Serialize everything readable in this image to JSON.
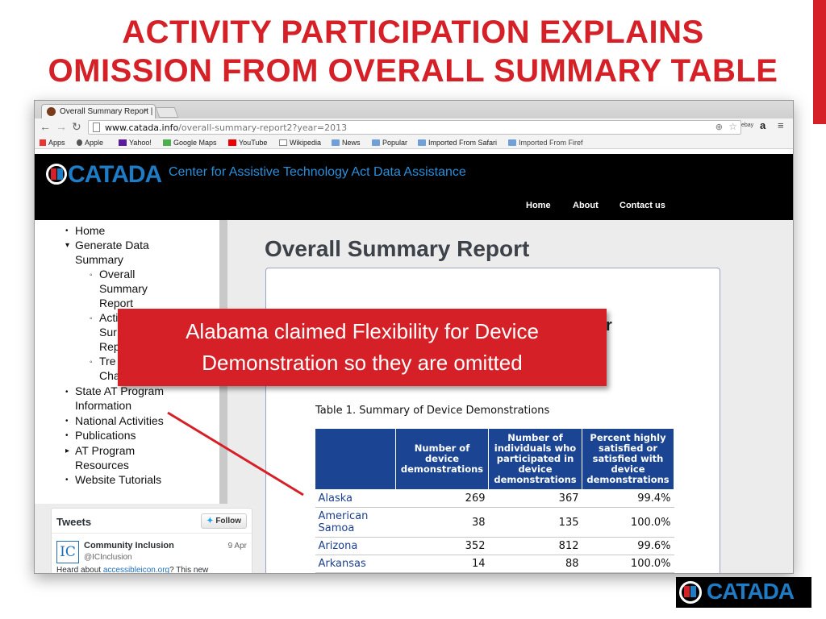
{
  "slide": {
    "title_line1": "ACTIVITY PARTICIPATION EXPLAINS",
    "title_line2": "OMISSION FROM OVERALL SUMMARY TABLE",
    "callout_line1": "Alabama claimed Flexibility for Device",
    "callout_line2": "Demonstration so they are omitted",
    "corner_logo": "CATADA"
  },
  "browser": {
    "tab_title": "Overall Summary Report |",
    "tab_close": "×",
    "url_host": "www.catada.info",
    "url_path": "/overall-summary-report2?year=2013",
    "bookmarks": [
      "Apps",
      "Apple",
      "Yahoo!",
      "Google Maps",
      "YouTube",
      "Wikipedia",
      "News",
      "Popular",
      "Imported From Safari",
      "Imported From Firef"
    ],
    "ext_ebay": "ebay",
    "ext_amazon": "a"
  },
  "site": {
    "logo": "CATADA",
    "tagline": "Center for Assistive Technology Act Data Assistance",
    "nav": [
      "Home",
      "About",
      "Contact us"
    ]
  },
  "sidebar": {
    "home": "Home",
    "generate_1": "Generate Data",
    "generate_2": "Summary",
    "overall_1": "Overall",
    "overall_2": "Summary",
    "overall_3": "Report",
    "activity_1": "Acti",
    "activity_2": "Sur",
    "activity_3": "Rep",
    "trend_1": "Tre",
    "trend_2": "Cha",
    "state_1": "State AT Program",
    "state_2": "Information",
    "national": "National Activities",
    "publications": "Publications",
    "resources_1": "AT Program",
    "resources_2": "Resources",
    "tutorials": "Website Tutorials"
  },
  "main": {
    "title": "Overall Summary Report",
    "partial_text": "r",
    "table_caption": "Table 1. Summary of Device Demonstrations",
    "headers": [
      "",
      "Number of device demonstrations",
      "Number of individuals who participated in device demonstrations",
      "Percent highly satisfied or satisfied with device demonstrations"
    ],
    "rows": [
      {
        "state": "Alaska",
        "demos": "269",
        "people": "367",
        "pct": "99.4%"
      },
      {
        "state": "American Samoa",
        "demos": "38",
        "people": "135",
        "pct": "100.0%"
      },
      {
        "state": "Arizona",
        "demos": "352",
        "people": "812",
        "pct": "99.6%"
      },
      {
        "state": "Arkansas",
        "demos": "14",
        "people": "88",
        "pct": "100.0%"
      }
    ]
  },
  "tweets": {
    "title": "Tweets",
    "follow": "Follow",
    "name": "Community Inclusion",
    "handle": "@ICInclusion",
    "date": "9 Apr",
    "text_before": "Heard about ",
    "link": "accessibleicon.org",
    "text_after": "? This new",
    "avatar": "IC"
  }
}
